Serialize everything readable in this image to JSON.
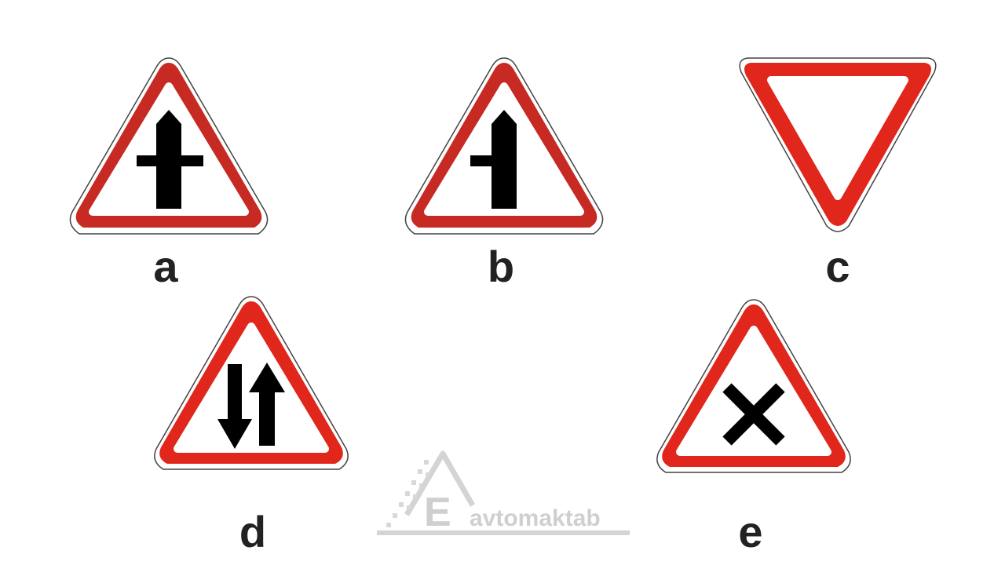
{
  "signs": [
    {
      "label": "a",
      "icon": "crossroad-main-road-icon"
    },
    {
      "label": "b",
      "icon": "side-road-junction-left-icon"
    },
    {
      "label": "c",
      "icon": "give-way-icon"
    },
    {
      "label": "d",
      "icon": "two-way-traffic-icon"
    },
    {
      "label": "e",
      "icon": "crossroad-secondary-road-icon"
    }
  ],
  "watermark": {
    "letter": "E",
    "text": "avtomaktab"
  },
  "colors": {
    "sign_red": "#e1261c",
    "sign_red_dark": "#c62a22",
    "symbol_black": "#000000",
    "label_text": "#222222",
    "watermark_gray": "#d4d4d4"
  }
}
